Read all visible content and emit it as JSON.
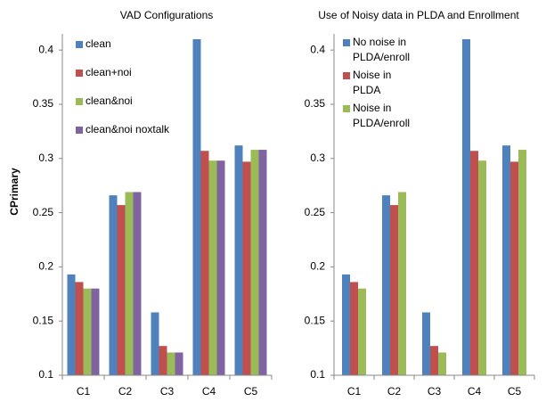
{
  "chart_data": [
    {
      "type": "bar",
      "title": "VAD Configurations",
      "ylabel": "CPrimary",
      "categories": [
        "C1",
        "C2",
        "C3",
        "C4",
        "C5"
      ],
      "series": [
        {
          "name": "clean",
          "color": "#4f81bd",
          "values": [
            0.193,
            0.266,
            0.158,
            0.41,
            0.312
          ]
        },
        {
          "name": "clean+noi",
          "color": "#c0504d",
          "values": [
            0.186,
            0.257,
            0.127,
            0.307,
            0.297
          ]
        },
        {
          "name": "clean&noi",
          "color": "#9bbb59",
          "values": [
            0.18,
            0.269,
            0.121,
            0.298,
            0.308
          ]
        },
        {
          "name": "clean&noi noxtalk",
          "color": "#8064a2",
          "values": [
            0.18,
            0.269,
            0.121,
            0.298,
            0.308
          ]
        }
      ],
      "ylim": [
        0.1,
        0.41
      ],
      "yticks": [
        0.1,
        0.15,
        0.2,
        0.25,
        0.3,
        0.35,
        0.4
      ],
      "grid": false,
      "legend": "top-left"
    },
    {
      "type": "bar",
      "title": "Use of Noisy data in PLDA and Enrollment",
      "categories": [
        "C1",
        "C2",
        "C3",
        "C4",
        "C5"
      ],
      "series": [
        {
          "name": "No noise in PLDA/enroll",
          "color": "#4f81bd",
          "values": [
            0.193,
            0.266,
            0.158,
            0.41,
            0.312
          ]
        },
        {
          "name": "Noise in PLDA",
          "color": "#c0504d",
          "values": [
            0.186,
            0.257,
            0.127,
            0.307,
            0.297
          ]
        },
        {
          "name": "Noise in PLDA/enroll",
          "color": "#9bbb59",
          "values": [
            0.18,
            0.269,
            0.121,
            0.298,
            0.308
          ]
        }
      ],
      "ylim": [
        0.1,
        0.41
      ],
      "yticks": [
        0.1,
        0.15,
        0.2,
        0.25,
        0.3,
        0.35,
        0.4
      ],
      "grid": false,
      "legend": "top-left"
    }
  ]
}
